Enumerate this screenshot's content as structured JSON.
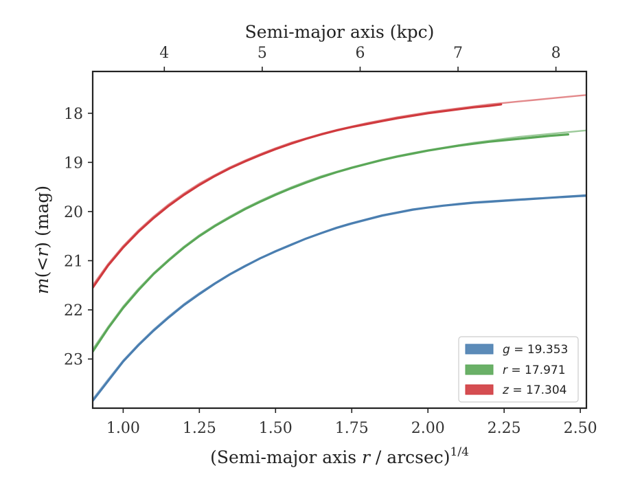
{
  "chart_data": {
    "type": "line",
    "xlabel_bottom_main": "(Semi-major axis ",
    "xlabel_bottom_var": "r",
    "xlabel_bottom_tail": " / arcsec)",
    "xlabel_bottom_sup": "1/4",
    "xlabel_top": "Semi-major axis (kpc)",
    "ylabel_pre": "m",
    "ylabel_open": "(<",
    "ylabel_var": "r",
    "ylabel_close": ") (mag)",
    "xlim": [
      0.9,
      2.52
    ],
    "ylim": [
      24.0,
      17.15
    ],
    "y_inverted": true,
    "x_ticks": [
      1.0,
      1.25,
      1.5,
      1.75,
      2.0,
      2.25,
      2.5
    ],
    "x_tick_labels": [
      "1.00",
      "1.25",
      "1.50",
      "1.75",
      "2.00",
      "2.25",
      "2.50"
    ],
    "y_ticks": [
      18,
      19,
      20,
      21,
      22,
      23
    ],
    "y_tick_labels": [
      "18",
      "19",
      "20",
      "21",
      "22",
      "23"
    ],
    "top_ticks_kpc": [
      4,
      5,
      6,
      7,
      8
    ],
    "top_tick_labels": [
      "4",
      "5",
      "6",
      "7",
      "8"
    ],
    "kpc_scale": 3.525,
    "legend_position": "lower-right",
    "series": [
      {
        "name": "g",
        "label_var": "g",
        "label_value": " = 19.353",
        "color": "#4a7eb0",
        "x_observed": [
          0.9,
          0.95,
          1.0,
          1.05,
          1.1,
          1.15,
          1.2,
          1.25,
          1.3,
          1.35,
          1.4,
          1.45,
          1.5,
          1.55,
          1.6,
          1.65,
          1.7,
          1.75,
          1.8,
          1.85,
          1.9,
          1.95,
          2.0,
          2.05,
          2.1,
          2.15,
          2.2,
          2.25,
          2.3,
          2.35,
          2.4,
          2.45,
          2.5,
          2.52
        ],
        "y_observed": [
          23.85,
          23.45,
          23.05,
          22.72,
          22.42,
          22.15,
          21.9,
          21.68,
          21.47,
          21.28,
          21.11,
          20.95,
          20.81,
          20.68,
          20.55,
          20.44,
          20.33,
          20.24,
          20.16,
          20.08,
          20.02,
          19.96,
          19.92,
          19.88,
          19.85,
          19.82,
          19.8,
          19.78,
          19.76,
          19.74,
          19.72,
          19.7,
          19.68,
          19.67
        ],
        "x_model": [
          0.9,
          0.95,
          1.0,
          1.05,
          1.1,
          1.15,
          1.2,
          1.25,
          1.3,
          1.35,
          1.4,
          1.45,
          1.5,
          1.55,
          1.6,
          1.65,
          1.7,
          1.75,
          1.8,
          1.85,
          1.9,
          1.95,
          2.0,
          2.05,
          2.1,
          2.15,
          2.2,
          2.25,
          2.3,
          2.35,
          2.4,
          2.45,
          2.5,
          2.52
        ],
        "y_model": [
          23.82,
          23.42,
          23.03,
          22.7,
          22.4,
          22.13,
          21.88,
          21.66,
          21.46,
          21.27,
          21.1,
          20.95,
          20.8,
          20.67,
          20.55,
          20.44,
          20.34,
          20.25,
          20.17,
          20.09,
          20.03,
          19.97,
          19.92,
          19.88,
          19.84,
          19.81,
          19.79,
          19.77,
          19.75,
          19.73,
          19.72,
          19.71,
          19.69,
          19.69
        ]
      },
      {
        "name": "r",
        "label_var": "r",
        "label_value": " = 17.971",
        "color": "#5aa757",
        "x_observed": [
          0.9,
          0.95,
          1.0,
          1.05,
          1.1,
          1.15,
          1.2,
          1.25,
          1.3,
          1.35,
          1.4,
          1.45,
          1.5,
          1.55,
          1.6,
          1.65,
          1.7,
          1.75,
          1.8,
          1.85,
          1.9,
          1.95,
          2.0,
          2.05,
          2.1,
          2.15,
          2.2,
          2.25,
          2.3,
          2.35,
          2.4,
          2.46
        ],
        "y_observed": [
          22.85,
          22.38,
          21.96,
          21.6,
          21.27,
          20.99,
          20.73,
          20.5,
          20.3,
          20.12,
          19.95,
          19.8,
          19.66,
          19.53,
          19.41,
          19.3,
          19.2,
          19.11,
          19.03,
          18.95,
          18.88,
          18.82,
          18.76,
          18.71,
          18.66,
          18.62,
          18.58,
          18.55,
          18.52,
          18.49,
          18.46,
          18.43
        ],
        "x_model": [
          0.9,
          0.95,
          1.0,
          1.05,
          1.1,
          1.15,
          1.2,
          1.25,
          1.3,
          1.35,
          1.4,
          1.45,
          1.5,
          1.55,
          1.6,
          1.65,
          1.7,
          1.75,
          1.8,
          1.85,
          1.9,
          1.95,
          2.0,
          2.05,
          2.1,
          2.15,
          2.2,
          2.25,
          2.3,
          2.35,
          2.4,
          2.45,
          2.5,
          2.52
        ],
        "y_model": [
          22.8,
          22.35,
          21.93,
          21.57,
          21.25,
          20.97,
          20.71,
          20.48,
          20.28,
          20.1,
          19.93,
          19.78,
          19.64,
          19.51,
          19.39,
          19.28,
          19.19,
          19.1,
          19.02,
          18.94,
          18.87,
          18.81,
          18.75,
          18.7,
          18.65,
          18.6,
          18.56,
          18.52,
          18.48,
          18.45,
          18.42,
          18.39,
          18.36,
          18.35
        ]
      },
      {
        "name": "z",
        "label_var": "z",
        "label_value": " = 17.304",
        "color": "#d03a3e",
        "x_observed": [
          0.9,
          0.95,
          1.0,
          1.05,
          1.1,
          1.15,
          1.2,
          1.25,
          1.3,
          1.35,
          1.4,
          1.45,
          1.5,
          1.55,
          1.6,
          1.65,
          1.7,
          1.75,
          1.8,
          1.85,
          1.9,
          1.95,
          2.0,
          2.05,
          2.1,
          2.15,
          2.2,
          2.24
        ],
        "y_observed": [
          21.55,
          21.1,
          20.73,
          20.41,
          20.13,
          19.88,
          19.66,
          19.46,
          19.28,
          19.12,
          18.98,
          18.85,
          18.73,
          18.62,
          18.52,
          18.43,
          18.35,
          18.28,
          18.22,
          18.16,
          18.1,
          18.05,
          18.0,
          17.96,
          17.92,
          17.88,
          17.85,
          17.82
        ],
        "x_model": [
          0.9,
          0.95,
          1.0,
          1.05,
          1.1,
          1.15,
          1.2,
          1.25,
          1.3,
          1.35,
          1.4,
          1.45,
          1.5,
          1.55,
          1.6,
          1.65,
          1.7,
          1.75,
          1.8,
          1.85,
          1.9,
          1.95,
          2.0,
          2.05,
          2.1,
          2.15,
          2.2,
          2.25,
          2.3,
          2.35,
          2.4,
          2.45,
          2.5,
          2.52
        ],
        "y_model": [
          21.5,
          21.07,
          20.7,
          20.38,
          20.1,
          19.85,
          19.63,
          19.43,
          19.26,
          19.1,
          18.96,
          18.83,
          18.71,
          18.6,
          18.51,
          18.42,
          18.34,
          18.27,
          18.2,
          18.14,
          18.08,
          18.03,
          17.98,
          17.94,
          17.9,
          17.86,
          17.82,
          17.79,
          17.76,
          17.73,
          17.7,
          17.67,
          17.64,
          17.63
        ]
      }
    ]
  }
}
